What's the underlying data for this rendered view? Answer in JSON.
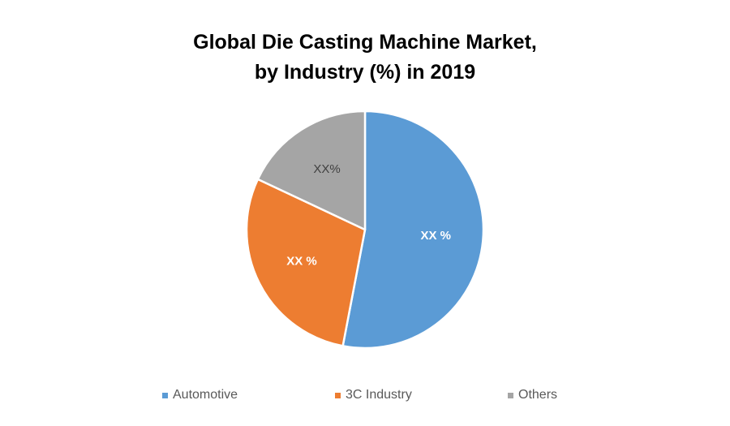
{
  "chart_data": {
    "type": "pie",
    "title_line1": "Global Die Casting Machine Market,",
    "title_line2": "by Industry (%) in 2019",
    "categories": [
      "Automotive",
      "3C Industry",
      "Others"
    ],
    "values": [
      53,
      29,
      18
    ],
    "data_labels": [
      "XX %",
      "XX %",
      "XX%"
    ],
    "colors": [
      "#5B9BD5",
      "#ED7D31",
      "#A5A5A5"
    ],
    "label_colors": [
      "#FFFFFF",
      "#FFFFFF",
      "#404040"
    ],
    "legend_position": "bottom"
  }
}
